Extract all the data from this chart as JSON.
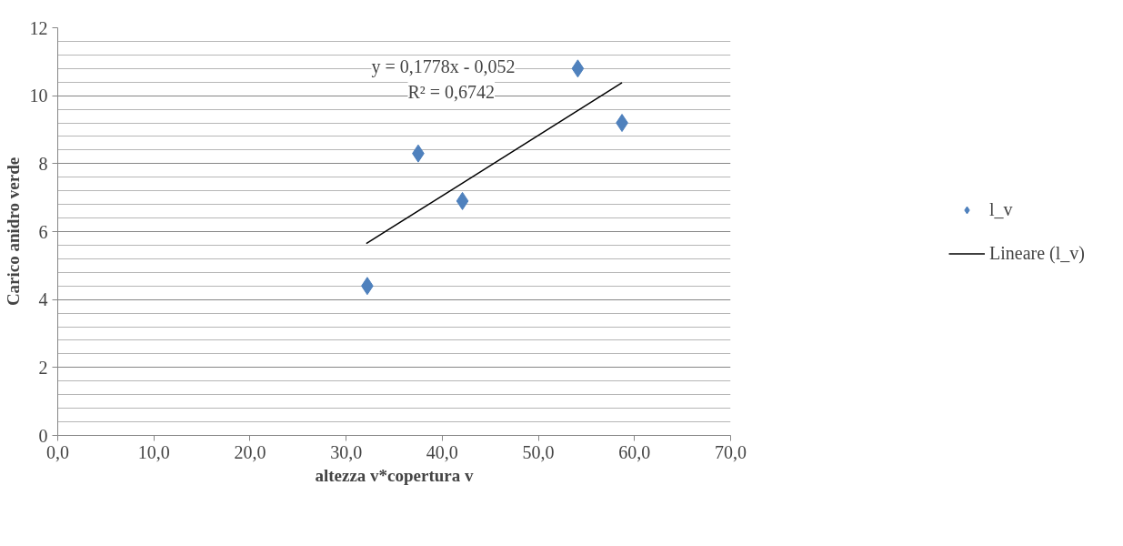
{
  "chart_data": {
    "type": "scatter",
    "xlabel": "altezza v*copertura v",
    "ylabel": "Carico anidro verde",
    "series": [
      {
        "name": "l_v",
        "color": "#4f81bd",
        "marker": "diamond",
        "x": [
          32.2,
          37.5,
          42.1,
          54.1,
          58.7
        ],
        "values": [
          4.4,
          8.3,
          6.9,
          10.8,
          9.2
        ]
      },
      {
        "name": "Lineare (l_v)",
        "type": "line",
        "color": "#000000",
        "line_style": "solid",
        "x": [
          32.1,
          58.7
        ],
        "values": [
          5.65,
          10.38
        ]
      }
    ],
    "xlim": [
      0,
      70
    ],
    "ylim": [
      0,
      12
    ],
    "xticks": [
      {
        "value": 0,
        "label": "0,0"
      },
      {
        "value": 10,
        "label": "10,0"
      },
      {
        "value": 20,
        "label": "20,0"
      },
      {
        "value": 30,
        "label": "30,0"
      },
      {
        "value": 40,
        "label": "40,0"
      },
      {
        "value": 50,
        "label": "50,0"
      },
      {
        "value": 60,
        "label": "60,0"
      },
      {
        "value": 70,
        "label": "70,0"
      }
    ],
    "yticks": [
      0,
      2,
      4,
      6,
      8,
      10,
      12
    ],
    "grid": "y",
    "legend": "right",
    "annotations": [
      "y = 0,1778x - 0,052",
      "R² = 0,6742"
    ]
  }
}
